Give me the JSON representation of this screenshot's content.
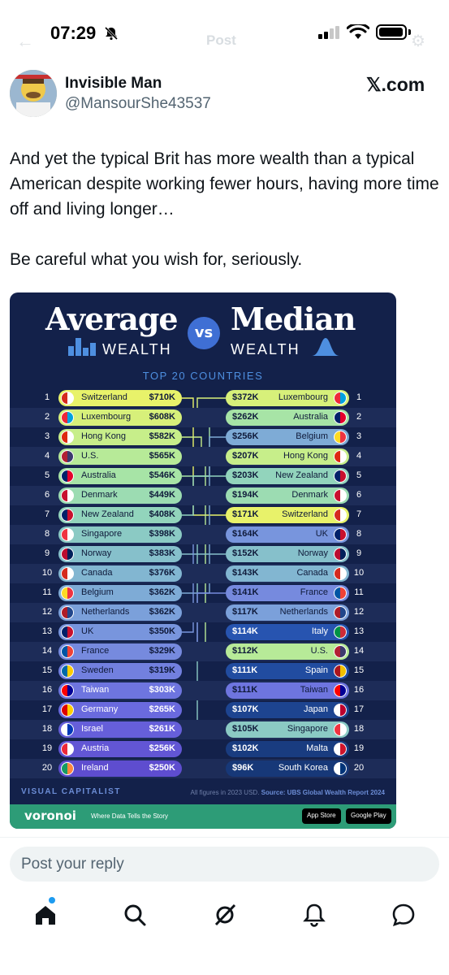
{
  "status_bar": {
    "time": "07:29",
    "faint_title": "Post"
  },
  "post": {
    "author_name": "Invisible Man",
    "author_handle": "@MansourShe43537",
    "source_logo": "𝕏.com",
    "paragraphs": [
      "And yet the typical Brit has more wealth than a typical American despite working fewer hours, having more time off and living longer…",
      "Be careful what you wish for, seriously."
    ]
  },
  "infographic": {
    "title_left": "Average",
    "vs": "vs",
    "title_right": "Median",
    "subtitle_left": "WEALTH",
    "subtitle_right": "WEALTH",
    "section": "TOP 20 COUNTRIES",
    "average": [
      {
        "rank": "1",
        "country": "Switzerland",
        "value": "$710K"
      },
      {
        "rank": "2",
        "country": "Luxembourg",
        "value": "$608K"
      },
      {
        "rank": "3",
        "country": "Hong Kong",
        "value": "$582K"
      },
      {
        "rank": "4",
        "country": "U.S.",
        "value": "$565K"
      },
      {
        "rank": "5",
        "country": "Australia",
        "value": "$546K"
      },
      {
        "rank": "6",
        "country": "Denmark",
        "value": "$449K"
      },
      {
        "rank": "7",
        "country": "New Zealand",
        "value": "$408K"
      },
      {
        "rank": "8",
        "country": "Singapore",
        "value": "$398K"
      },
      {
        "rank": "9",
        "country": "Norway",
        "value": "$383K"
      },
      {
        "rank": "10",
        "country": "Canada",
        "value": "$376K"
      },
      {
        "rank": "11",
        "country": "Belgium",
        "value": "$362K"
      },
      {
        "rank": "12",
        "country": "Netherlands",
        "value": "$362K"
      },
      {
        "rank": "13",
        "country": "UK",
        "value": "$350K"
      },
      {
        "rank": "14",
        "country": "France",
        "value": "$329K"
      },
      {
        "rank": "15",
        "country": "Sweden",
        "value": "$319K"
      },
      {
        "rank": "16",
        "country": "Taiwan",
        "value": "$303K"
      },
      {
        "rank": "17",
        "country": "Germany",
        "value": "$265K"
      },
      {
        "rank": "18",
        "country": "Israel",
        "value": "$261K"
      },
      {
        "rank": "19",
        "country": "Austria",
        "value": "$256K"
      },
      {
        "rank": "20",
        "country": "Ireland",
        "value": "$250K"
      }
    ],
    "median": [
      {
        "rank": "1",
        "country": "Luxembourg",
        "value": "$372K"
      },
      {
        "rank": "2",
        "country": "Australia",
        "value": "$262K"
      },
      {
        "rank": "3",
        "country": "Belgium",
        "value": "$256K"
      },
      {
        "rank": "4",
        "country": "Hong Kong",
        "value": "$207K"
      },
      {
        "rank": "5",
        "country": "New Zealand",
        "value": "$203K"
      },
      {
        "rank": "6",
        "country": "Denmark",
        "value": "$194K"
      },
      {
        "rank": "7",
        "country": "Switzerland",
        "value": "$171K"
      },
      {
        "rank": "8",
        "country": "UK",
        "value": "$164K"
      },
      {
        "rank": "9",
        "country": "Norway",
        "value": "$152K"
      },
      {
        "rank": "10",
        "country": "Canada",
        "value": "$143K"
      },
      {
        "rank": "11",
        "country": "France",
        "value": "$141K"
      },
      {
        "rank": "12",
        "country": "Netherlands",
        "value": "$117K"
      },
      {
        "rank": "13",
        "country": "Italy",
        "value": "$114K"
      },
      {
        "rank": "14",
        "country": "U.S.",
        "value": "$112K"
      },
      {
        "rank": "15",
        "country": "Spain",
        "value": "$111K"
      },
      {
        "rank": "16",
        "country": "Taiwan",
        "value": "$111K"
      },
      {
        "rank": "17",
        "country": "Japan",
        "value": "$107K"
      },
      {
        "rank": "18",
        "country": "Singapore",
        "value": "$105K"
      },
      {
        "rank": "19",
        "country": "Malta",
        "value": "$102K"
      },
      {
        "rank": "20",
        "country": "South Korea",
        "value": "$96K"
      }
    ],
    "brand": "VISUAL CAPITALIST",
    "note": "All figures in 2023 USD.",
    "source": "Source: UBS Global Wealth Report 2024",
    "footer_brand": "voronoi",
    "footer_tagline": "Where Data Tells the Story",
    "app_store": "App Store",
    "google_play": "Google Play"
  },
  "reply": {
    "placeholder": "Post your reply"
  },
  "colors": {
    "accent": "#1d9bf0",
    "panel": "#13214a",
    "voronoi_green": "#2d9c77"
  },
  "nav_icons": [
    "home-icon",
    "search-icon",
    "grok-icon",
    "notifications-icon",
    "messages-icon"
  ]
}
